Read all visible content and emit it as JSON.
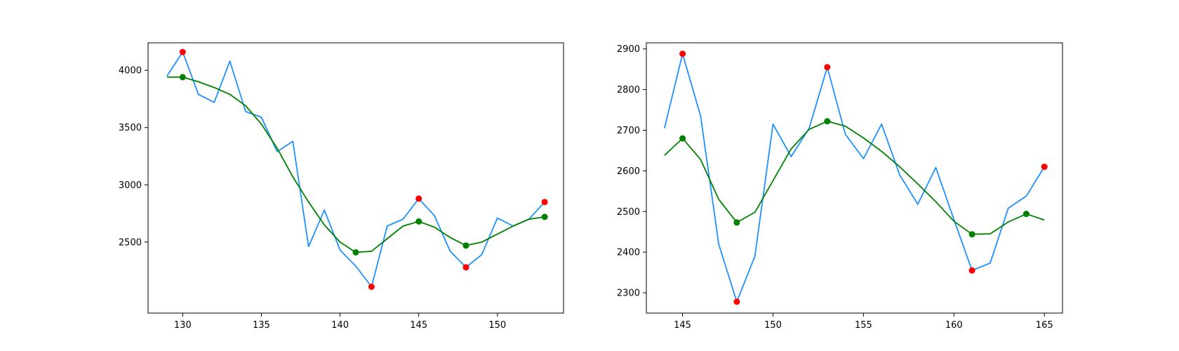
{
  "chart_data": [
    {
      "type": "line",
      "title": "",
      "xlabel": "",
      "ylabel": "",
      "xlim": [
        127.8,
        154.2
      ],
      "ylim": [
        1880,
        4240
      ],
      "xticks": [
        130,
        135,
        140,
        145,
        150
      ],
      "yticks": [
        2500,
        3000,
        3500,
        4000
      ],
      "grid": false,
      "series": [
        {
          "color": "#1e90ff",
          "x": [
            129,
            130,
            131,
            132,
            133,
            134,
            135,
            136,
            137,
            138,
            139,
            140,
            141,
            142,
            143,
            144,
            145,
            146,
            147,
            148,
            149,
            150,
            151,
            152,
            153
          ],
          "y": [
            3950,
            4160,
            3790,
            3720,
            4080,
            3640,
            3590,
            3290,
            3380,
            2460,
            2780,
            2430,
            2290,
            2110,
            2640,
            2700,
            2880,
            2730,
            2420,
            2280,
            2390,
            2710,
            2640,
            2700,
            2850
          ]
        },
        {
          "color": "#008000",
          "x": [
            129,
            130,
            131,
            132,
            133,
            134,
            135,
            136,
            137,
            138,
            139,
            140,
            141,
            142,
            143,
            144,
            145,
            146,
            147,
            148,
            149,
            150,
            151,
            152,
            153
          ],
          "y": [
            3940,
            3940,
            3900,
            3850,
            3790,
            3690,
            3530,
            3320,
            3070,
            2850,
            2650,
            2500,
            2410,
            2420,
            2530,
            2640,
            2680,
            2630,
            2540,
            2470,
            2500,
            2570,
            2640,
            2700,
            2720
          ]
        }
      ],
      "markers": [
        {
          "color": "#ff0000",
          "x": [
            130,
            142,
            145,
            148,
            153
          ],
          "y": [
            4160,
            2110,
            2880,
            2280,
            2850
          ]
        },
        {
          "color": "#008000",
          "x": [
            130,
            141,
            145,
            148,
            153
          ],
          "y": [
            3940,
            2410,
            2680,
            2470,
            2720
          ]
        }
      ]
    },
    {
      "type": "line",
      "title": "",
      "xlabel": "",
      "ylabel": "",
      "xlim": [
        143.0,
        166.0
      ],
      "ylim": [
        2250,
        2915
      ],
      "xticks": [
        145,
        150,
        155,
        160,
        165
      ],
      "yticks": [
        2300,
        2400,
        2500,
        2600,
        2700,
        2800,
        2900
      ],
      "grid": false,
      "series": [
        {
          "color": "#1e90ff",
          "x": [
            144,
            145,
            146,
            147,
            148,
            149,
            150,
            151,
            152,
            153,
            154,
            155,
            156,
            157,
            158,
            159,
            160,
            161,
            162,
            163,
            164,
            165
          ],
          "y": [
            2705,
            2888,
            2735,
            2420,
            2278,
            2390,
            2715,
            2635,
            2705,
            2855,
            2690,
            2630,
            2715,
            2590,
            2518,
            2608,
            2480,
            2355,
            2373,
            2508,
            2538,
            2610
          ]
        },
        {
          "color": "#008000",
          "x": [
            144,
            145,
            146,
            147,
            148,
            149,
            150,
            151,
            152,
            153,
            154,
            155,
            156,
            157,
            158,
            159,
            160,
            161,
            162,
            163,
            164,
            165
          ],
          "y": [
            2638,
            2680,
            2628,
            2530,
            2473,
            2498,
            2576,
            2654,
            2702,
            2722,
            2710,
            2681,
            2648,
            2610,
            2568,
            2524,
            2476,
            2444,
            2445,
            2474,
            2494,
            2479
          ]
        }
      ],
      "markers": [
        {
          "color": "#ff0000",
          "x": [
            145,
            148,
            153,
            161,
            165
          ],
          "y": [
            2888,
            2278,
            2855,
            2355,
            2610
          ]
        },
        {
          "color": "#008000",
          "x": [
            145,
            148,
            153,
            161,
            164
          ],
          "y": [
            2680,
            2473,
            2722,
            2444,
            2494
          ]
        }
      ]
    }
  ]
}
